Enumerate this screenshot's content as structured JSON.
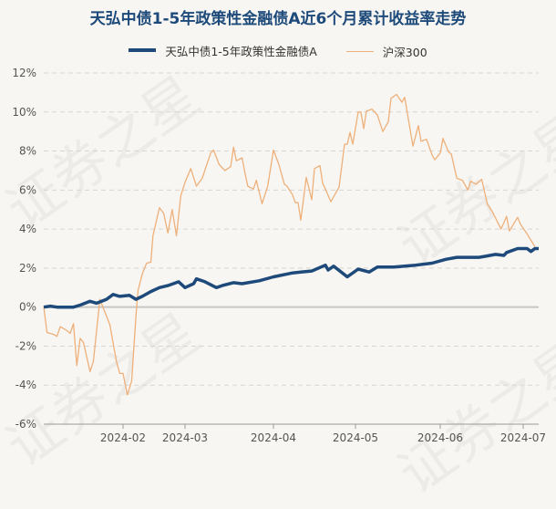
{
  "watermark": "证券之星",
  "chart_data": {
    "type": "line",
    "title": "天弘中债1-5年政策性金融债A近6个月累计收益率走势",
    "xlabel": "",
    "ylabel": "",
    "ylim": [
      -6,
      12
    ],
    "yticks": [
      "-6%",
      "-4%",
      "-2%",
      "0%",
      "2%",
      "4%",
      "6%",
      "8%",
      "10%",
      "12%"
    ],
    "xticks": [
      "2024-02",
      "2024-03",
      "2024-04",
      "2024-05",
      "2024-06",
      "2024-07"
    ],
    "grid": true,
    "legend": "top",
    "series": [
      {
        "name": "天弘中债1-5年政策性金融债A",
        "color": "#1d4a7a",
        "points": [
          [
            "2024-01-08",
            0
          ],
          [
            "2024-01-10",
            0.05
          ],
          [
            "2024-01-12",
            0
          ],
          [
            "2024-01-17",
            0
          ],
          [
            "2024-01-19",
            0.1
          ],
          [
            "2024-01-22",
            0.3
          ],
          [
            "2024-01-24",
            0.2
          ],
          [
            "2024-01-27",
            0.4
          ],
          [
            "2024-01-29",
            0.65
          ],
          [
            "2024-01-31",
            0.55
          ],
          [
            "2024-02-04",
            0.6
          ],
          [
            "2024-02-07",
            0.4
          ],
          [
            "2024-02-10",
            0.55
          ],
          [
            "2024-02-14",
            0.8
          ],
          [
            "2024-02-18",
            1.0
          ],
          [
            "2024-02-22",
            1.1
          ],
          [
            "2024-02-27",
            1.3
          ],
          [
            "2024-03-01",
            1.0
          ],
          [
            "2024-03-04",
            1.2
          ],
          [
            "2024-03-05",
            1.45
          ],
          [
            "2024-03-08",
            1.3
          ],
          [
            "2024-03-12",
            1.0
          ],
          [
            "2024-03-14",
            1.1
          ],
          [
            "2024-03-18",
            1.25
          ],
          [
            "2024-03-21",
            1.2
          ],
          [
            "2024-03-27",
            1.35
          ],
          [
            "2024-04-01",
            1.55
          ],
          [
            "2024-04-08",
            1.75
          ],
          [
            "2024-04-11",
            1.8
          ],
          [
            "2024-04-15",
            1.85
          ],
          [
            "2024-04-20",
            2.15
          ],
          [
            "2024-04-21",
            1.9
          ],
          [
            "2024-04-23",
            2.1
          ],
          [
            "2024-04-28",
            1.55
          ],
          [
            "2024-05-02",
            1.95
          ],
          [
            "2024-05-06",
            1.8
          ],
          [
            "2024-05-09",
            2.05
          ],
          [
            "2024-05-15",
            2.05
          ],
          [
            "2024-05-23",
            2.15
          ],
          [
            "2024-05-29",
            2.25
          ],
          [
            "2024-06-03",
            2.45
          ],
          [
            "2024-06-07",
            2.55
          ],
          [
            "2024-06-15",
            2.55
          ],
          [
            "2024-06-17",
            2.6
          ],
          [
            "2024-06-21",
            2.7
          ],
          [
            "2024-06-24",
            2.65
          ],
          [
            "2024-06-25",
            2.8
          ],
          [
            "2024-06-29",
            3.0
          ],
          [
            "2024-07-02",
            3.0
          ],
          [
            "2024-07-03",
            2.85
          ],
          [
            "2024-07-04",
            3.0
          ],
          [
            "2024-07-05",
            3.0
          ]
        ]
      },
      {
        "name": "沪深300",
        "color": "#eeb07a",
        "points": [
          [
            "2024-01-08",
            0
          ],
          [
            "2024-01-09",
            -1.3
          ],
          [
            "2024-01-11",
            -1.4
          ],
          [
            "2024-01-12",
            -1.5
          ],
          [
            "2024-01-13",
            -1.0
          ],
          [
            "2024-01-15",
            -1.2
          ],
          [
            "2024-01-16",
            -1.35
          ],
          [
            "2024-01-17",
            -0.85
          ],
          [
            "2024-01-18",
            -3.0
          ],
          [
            "2024-01-19",
            -1.6
          ],
          [
            "2024-01-20",
            -1.8
          ],
          [
            "2024-01-22",
            -3.3
          ],
          [
            "2024-01-23",
            -2.8
          ],
          [
            "2024-01-25",
            0.4
          ],
          [
            "2024-01-28",
            -0.9
          ],
          [
            "2024-01-30",
            -2.8
          ],
          [
            "2024-01-31",
            -3.4
          ],
          [
            "2024-02-01",
            -3.4
          ],
          [
            "2024-02-03",
            -4.5
          ],
          [
            "2024-02-05",
            -3.8
          ],
          [
            "2024-02-07",
            -0.5
          ],
          [
            "2024-02-08",
            0.85
          ],
          [
            "2024-02-10",
            1.7
          ],
          [
            "2024-02-12",
            2.25
          ],
          [
            "2024-02-14",
            2.3
          ],
          [
            "2024-02-15",
            3.65
          ],
          [
            "2024-02-18",
            5.1
          ],
          [
            "2024-02-20",
            4.8
          ],
          [
            "2024-02-22",
            3.8
          ],
          [
            "2024-02-24",
            5.0
          ],
          [
            "2024-02-26",
            3.65
          ],
          [
            "2024-02-28",
            5.7
          ],
          [
            "2024-03-01",
            6.4
          ],
          [
            "2024-03-03",
            7.1
          ],
          [
            "2024-03-05",
            6.2
          ],
          [
            "2024-03-07",
            6.6
          ],
          [
            "2024-03-10",
            7.9
          ],
          [
            "2024-03-11",
            8.05
          ],
          [
            "2024-03-13",
            7.3
          ],
          [
            "2024-03-15",
            7.0
          ],
          [
            "2024-03-17",
            7.2
          ],
          [
            "2024-03-18",
            8.2
          ],
          [
            "2024-03-19",
            7.5
          ],
          [
            "2024-03-21",
            7.65
          ],
          [
            "2024-03-22",
            6.9
          ],
          [
            "2024-03-23",
            6.2
          ],
          [
            "2024-03-25",
            6.05
          ],
          [
            "2024-03-26",
            6.5
          ],
          [
            "2024-03-28",
            5.3
          ],
          [
            "2024-03-30",
            6.2
          ],
          [
            "2024-04-01",
            8.05
          ],
          [
            "2024-04-03",
            7.3
          ],
          [
            "2024-04-05",
            6.3
          ],
          [
            "2024-04-06",
            6.2
          ],
          [
            "2024-04-08",
            5.75
          ],
          [
            "2024-04-09",
            5.35
          ],
          [
            "2024-04-10",
            5.35
          ],
          [
            "2024-04-11",
            4.45
          ],
          [
            "2024-04-13",
            6.65
          ],
          [
            "2024-04-15",
            5.5
          ],
          [
            "2024-04-16",
            7.1
          ],
          [
            "2024-04-18",
            7.25
          ],
          [
            "2024-04-19",
            6.35
          ],
          [
            "2024-04-20",
            6.05
          ],
          [
            "2024-04-22",
            5.4
          ],
          [
            "2024-04-25",
            6.15
          ],
          [
            "2024-04-27",
            8.35
          ],
          [
            "2024-04-28",
            8.35
          ],
          [
            "2024-04-29",
            8.95
          ],
          [
            "2024-04-30",
            8.35
          ],
          [
            "2024-05-02",
            10.0
          ],
          [
            "2024-05-03",
            10.0
          ],
          [
            "2024-05-04",
            9.15
          ],
          [
            "2024-05-05",
            10.05
          ],
          [
            "2024-05-07",
            10.15
          ],
          [
            "2024-05-09",
            9.85
          ],
          [
            "2024-05-11",
            9.0
          ],
          [
            "2024-05-13",
            9.5
          ],
          [
            "2024-05-14",
            10.7
          ],
          [
            "2024-05-16",
            10.9
          ],
          [
            "2024-05-18",
            10.5
          ],
          [
            "2024-05-19",
            10.75
          ],
          [
            "2024-05-22",
            8.25
          ],
          [
            "2024-05-24",
            9.3
          ],
          [
            "2024-05-25",
            8.5
          ],
          [
            "2024-05-27",
            8.6
          ],
          [
            "2024-05-29",
            7.8
          ],
          [
            "2024-05-30",
            7.55
          ],
          [
            "2024-06-01",
            7.9
          ],
          [
            "2024-06-02",
            8.65
          ],
          [
            "2024-06-04",
            7.95
          ],
          [
            "2024-06-05",
            7.85
          ],
          [
            "2024-06-07",
            6.6
          ],
          [
            "2024-06-09",
            6.5
          ],
          [
            "2024-06-11",
            6.0
          ],
          [
            "2024-06-12",
            6.45
          ],
          [
            "2024-06-14",
            6.3
          ],
          [
            "2024-06-16",
            6.55
          ],
          [
            "2024-06-18",
            5.3
          ],
          [
            "2024-06-20",
            4.85
          ],
          [
            "2024-06-23",
            4.0
          ],
          [
            "2024-06-25",
            4.65
          ],
          [
            "2024-06-26",
            3.9
          ],
          [
            "2024-06-29",
            4.6
          ],
          [
            "2024-06-30",
            4.25
          ],
          [
            "2024-07-02",
            3.75
          ],
          [
            "2024-07-04",
            3.1
          ]
        ]
      }
    ]
  }
}
